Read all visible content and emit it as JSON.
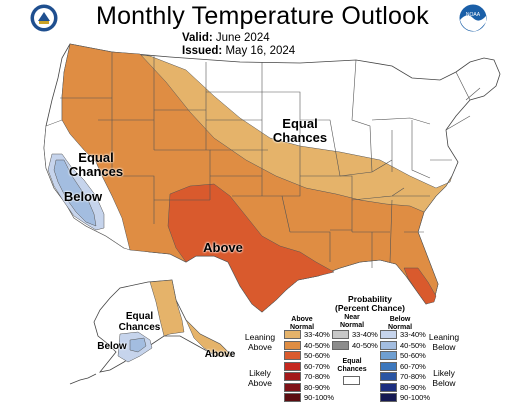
{
  "header": {
    "title": "Monthly Temperature Outlook",
    "valid_label": "Valid:",
    "valid_value": "June 2024",
    "issued_label": "Issued:",
    "issued_value": "May 16, 2024"
  },
  "logos": {
    "left_icon": "doc-seal-icon",
    "right_icon": "noaa-logo-icon",
    "right_text": "NOAA"
  },
  "map_labels": {
    "equal_chances_ne": "Equal\nChances",
    "equal_chances_west": "Equal\nChances",
    "below_west": "Below",
    "above_south": "Above",
    "equal_chances_ak": "Equal\nChances",
    "below_ak": "Below",
    "above_ak": "Above"
  },
  "colors": {
    "above_33_40": "#e5b36a",
    "above_40_50": "#df8d43",
    "above_50_60": "#d95a2d",
    "above_60_70": "#c5281f",
    "above_70_80": "#a3191b",
    "above_80_90": "#7f1218",
    "above_90_100": "#5b0c10",
    "near_33_40": "#c8c8c8",
    "near_40_50": "#8c8c8c",
    "below_33_40": "#c6d4ec",
    "below_40_50": "#a3bde0",
    "below_50_60": "#6f9fd1",
    "below_60_70": "#3d78bd",
    "below_70_80": "#2a55a3",
    "below_80_90": "#1d2f80",
    "below_90_100": "#151952",
    "equal_chances": "#ffffff",
    "border": "#555555"
  },
  "legend": {
    "title_line1": "Probability",
    "title_line2": "(Percent Chance)",
    "col_above": "Above\nNormal",
    "col_near": "Near\nNormal",
    "col_below": "Below\nNormal",
    "above_levels": [
      "33-40%",
      "40-50%",
      "50-60%",
      "60-70%",
      "70-80%",
      "80-90%",
      "90-100%"
    ],
    "near_levels": [
      "33-40%",
      "40-50%"
    ],
    "below_levels": [
      "33-40%",
      "40-50%",
      "50-60%",
      "60-70%",
      "70-80%",
      "80-90%",
      "90-100%"
    ],
    "leaning_above": "Leaning\nAbove",
    "likely_above": "Likely\nAbove",
    "leaning_below": "Leaning\nBelow",
    "likely_below": "Likely\nBelow",
    "equal_chances": "Equal\nChances"
  }
}
